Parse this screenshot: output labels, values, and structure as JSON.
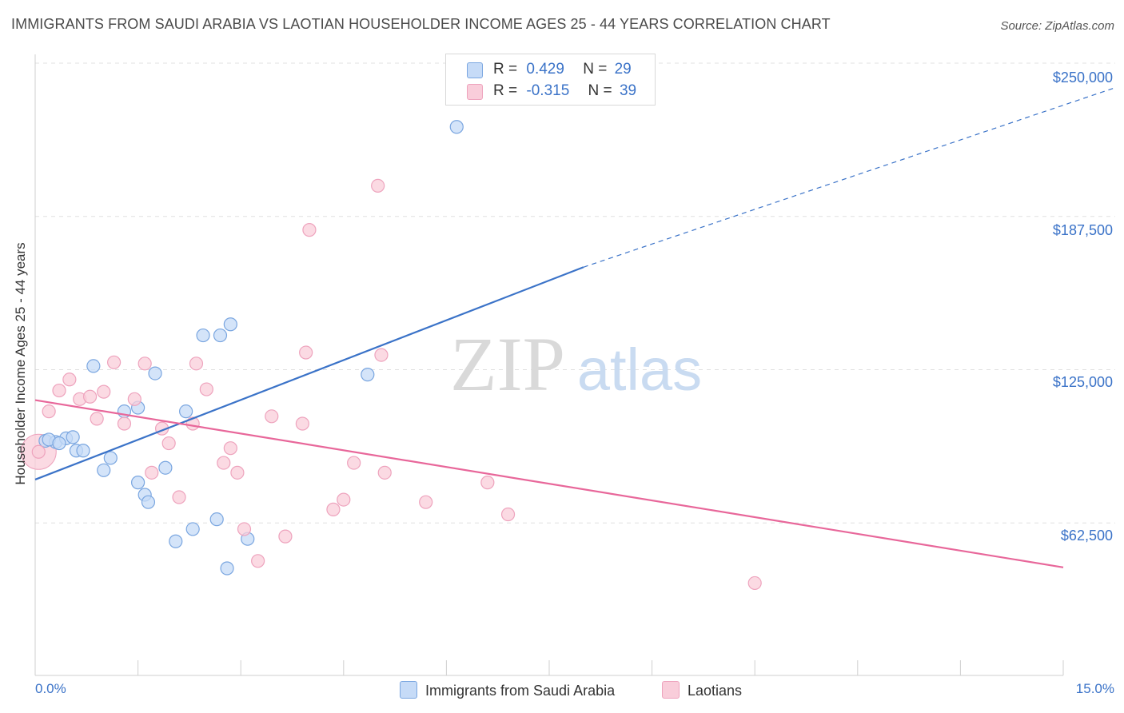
{
  "title": "IMMIGRANTS FROM SAUDI ARABIA VS LAOTIAN HOUSEHOLDER INCOME AGES 25 - 44 YEARS CORRELATION CHART",
  "source": "Source: ZipAtlas.com",
  "watermark": {
    "zip": "ZIP",
    "atlas": "atlas"
  },
  "colors": {
    "blue": "#3b73c8",
    "blue_fill": "#c6dbf7",
    "blue_stroke": "#7aa6e0",
    "pink": "#e8679a",
    "pink_fill": "#f9cdda",
    "pink_stroke": "#eea3bd",
    "grid": "#e0e0e0",
    "axis_text": "#3b73c8"
  },
  "legend": {
    "rows": [
      {
        "r_label": "R =",
        "r_value": "0.429",
        "n_label": "N =",
        "n_value": "29"
      },
      {
        "r_label": "R =",
        "r_value": "-0.315",
        "n_label": "N =",
        "n_value": "39"
      }
    ]
  },
  "chart_data": {
    "type": "scatter",
    "title": "IMMIGRANTS FROM SAUDI ARABIA VS LAOTIAN HOUSEHOLDER INCOME AGES 25 - 44 YEARS CORRELATION CHART",
    "xlabel": "",
    "ylabel": "Householder Income Ages 25 - 44 years",
    "xlim": [
      0,
      15
    ],
    "ylim": [
      0,
      250000
    ],
    "x_tick_labels": [
      "0.0%",
      "15.0%"
    ],
    "y_ticks": [
      62500,
      125000,
      187500,
      250000
    ],
    "y_tick_labels": [
      "$62,500",
      "$125,000",
      "$187,500",
      "$250,000"
    ],
    "grid": true,
    "legend_position": "top-center and bottom",
    "series": [
      {
        "name": "Immigrants from Saudi Arabia",
        "color": "#3b73c8",
        "r": 0.429,
        "n": 29,
        "trend": {
          "x": [
            0,
            8
          ],
          "y": [
            80200,
            166800
          ],
          "dashed_to": [
            15,
            240000
          ]
        },
        "points": [
          [
            0.15,
            96000
          ],
          [
            0.3,
            95500
          ],
          [
            0.45,
            97000
          ],
          [
            0.6,
            92000
          ],
          [
            0.7,
            92000
          ],
          [
            0.85,
            126500
          ],
          [
            1.0,
            84000
          ],
          [
            1.1,
            89000
          ],
          [
            1.3,
            108000
          ],
          [
            1.5,
            109500
          ],
          [
            1.5,
            79000
          ],
          [
            1.6,
            74000
          ],
          [
            1.65,
            71000
          ],
          [
            1.75,
            123500
          ],
          [
            1.9,
            85000
          ],
          [
            2.05,
            55000
          ],
          [
            2.2,
            108000
          ],
          [
            2.3,
            60000
          ],
          [
            2.45,
            139000
          ],
          [
            2.7,
            139000
          ],
          [
            2.65,
            64000
          ],
          [
            2.85,
            143500
          ],
          [
            2.8,
            44000
          ],
          [
            3.1,
            56000
          ],
          [
            4.85,
            123000
          ],
          [
            6.15,
            224000
          ],
          [
            0.2,
            96500
          ],
          [
            0.55,
            97500
          ],
          [
            0.35,
            95000
          ]
        ]
      },
      {
        "name": "Laotians",
        "color": "#e8679a",
        "r": -0.315,
        "n": 39,
        "trend": {
          "x": [
            0,
            15
          ],
          "y": [
            112600,
            44400
          ]
        },
        "points": [
          [
            0.05,
            91500
          ],
          [
            0.2,
            108000
          ],
          [
            0.35,
            116500
          ],
          [
            0.5,
            121000
          ],
          [
            0.65,
            113000
          ],
          [
            0.8,
            114000
          ],
          [
            0.9,
            105000
          ],
          [
            1.0,
            116000
          ],
          [
            1.15,
            128000
          ],
          [
            1.3,
            103000
          ],
          [
            1.45,
            113000
          ],
          [
            1.6,
            127500
          ],
          [
            1.7,
            83000
          ],
          [
            1.85,
            101000
          ],
          [
            1.95,
            95000
          ],
          [
            2.1,
            73000
          ],
          [
            2.3,
            103000
          ],
          [
            2.35,
            127500
          ],
          [
            2.5,
            117000
          ],
          [
            2.75,
            87000
          ],
          [
            2.85,
            93000
          ],
          [
            2.95,
            83000
          ],
          [
            3.05,
            60000
          ],
          [
            3.25,
            47000
          ],
          [
            3.45,
            106000
          ],
          [
            3.65,
            57000
          ],
          [
            3.9,
            103000
          ],
          [
            3.95,
            132000
          ],
          [
            4.0,
            182000
          ],
          [
            4.35,
            68000
          ],
          [
            4.5,
            72000
          ],
          [
            4.65,
            87000
          ],
          [
            5.0,
            200000
          ],
          [
            5.05,
            131000
          ],
          [
            5.1,
            83000
          ],
          [
            5.7,
            71000
          ],
          [
            6.6,
            79000
          ],
          [
            6.9,
            66000
          ],
          [
            10.5,
            38000
          ]
        ]
      }
    ]
  },
  "ylabel": "Householder Income Ages 25 - 44 years",
  "x_axis": {
    "min_label": "0.0%",
    "max_label": "15.0%"
  },
  "y_axis": {
    "labels": [
      "$62,500",
      "$125,000",
      "$187,500",
      "$250,000"
    ]
  }
}
